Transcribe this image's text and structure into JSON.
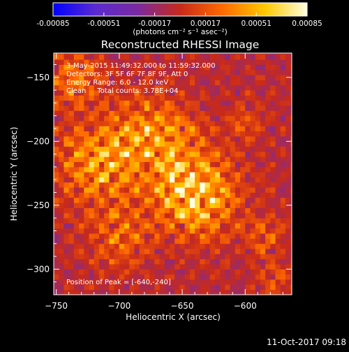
{
  "chart_data": {
    "type": "heatmap",
    "title": "Reconstructed RHESSI Image",
    "xlabel": "Heliocentric X (arcsec)",
    "ylabel": "Heliocentric Y (arcsec)",
    "xlim": [
      -752,
      -563
    ],
    "ylim": [
      -320,
      -131
    ],
    "x_ticks": [
      -750,
      -700,
      -650,
      -600
    ],
    "y_ticks": [
      -150,
      -200,
      -250,
      -300
    ],
    "colorbar": {
      "range": [
        -0.00085,
        0.00085
      ],
      "ticks": [
        "-0.00085",
        "-0.00051",
        "-0.00017",
        "0.00017",
        "0.00051",
        "0.00085"
      ],
      "unit_label": "(photons cm⁻² s⁻¹ asec⁻²)",
      "colormap": [
        "#0000ff",
        "#5b2bd0",
        "#7a2aa0",
        "#c82a1a",
        "#ff6a00",
        "#ffc800",
        "#ffffe0"
      ]
    },
    "annotations": [
      "3-May-2015 11:49:32.000 to 11:59:32.000",
      "Detectors: 3F 5F 6F 7F 8F 9F, Att 0",
      "Energy Range: 6.0 - 12.0 keV",
      "Clean     Total counts: 3.78E+04"
    ],
    "peak_text": "Position of Peak = [-640,-240]",
    "peak_position": [
      -640,
      -240
    ],
    "sources": [
      {
        "x": -640,
        "y": -240,
        "sigma": 22,
        "amp": 0.00085
      },
      {
        "x": -715,
        "y": -215,
        "sigma": 24,
        "amp": 0.0006
      },
      {
        "x": -670,
        "y": -195,
        "sigma": 20,
        "amp": 0.00058
      },
      {
        "x": -735,
        "y": -150,
        "sigma": 14,
        "amp": 0.00045
      },
      {
        "x": -700,
        "y": -275,
        "sigma": 16,
        "amp": 0.00038
      },
      {
        "x": -600,
        "y": -185,
        "sigma": 12,
        "amp": 0.00022
      },
      {
        "x": -585,
        "y": -275,
        "sigma": 12,
        "amp": 0.00025
      },
      {
        "x": -578,
        "y": -310,
        "sigma": 10,
        "amp": 0.00022
      }
    ]
  },
  "footer": {
    "timestamp": "11-Oct-2017 09:18"
  }
}
